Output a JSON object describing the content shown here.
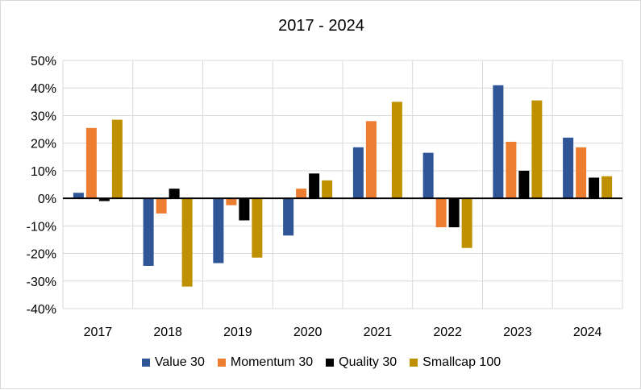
{
  "chart_data": {
    "type": "bar",
    "title": "2017 - 2024",
    "categories": [
      "2017",
      "2018",
      "2019",
      "2020",
      "2021",
      "2022",
      "2023",
      "2024"
    ],
    "series": [
      {
        "name": "Value 30",
        "color": "#2f5597",
        "values": [
          2,
          -24.5,
          -23.5,
          -13.5,
          18.5,
          16.5,
          41,
          22
        ]
      },
      {
        "name": "Momentum 30",
        "color": "#ed7d31",
        "values": [
          25.5,
          -5.5,
          -2.5,
          3.5,
          28,
          -10.5,
          20.5,
          18.5
        ]
      },
      {
        "name": "Quality 30",
        "color": "#000000",
        "values": [
          -1,
          3.5,
          -8,
          9,
          0,
          -10.5,
          10,
          7.5
        ]
      },
      {
        "name": "Smallcap 100",
        "color": "#bf9000",
        "values": [
          28.5,
          -32,
          -21.5,
          6.5,
          35,
          -18,
          35.5,
          8
        ]
      }
    ],
    "yticks": [
      "50%",
      "40%",
      "30%",
      "20%",
      "10%",
      "0%",
      "-10%",
      "-20%",
      "-30%",
      "-40%"
    ],
    "ylim": [
      -40,
      50
    ],
    "grid": true,
    "legend": "bottom"
  }
}
